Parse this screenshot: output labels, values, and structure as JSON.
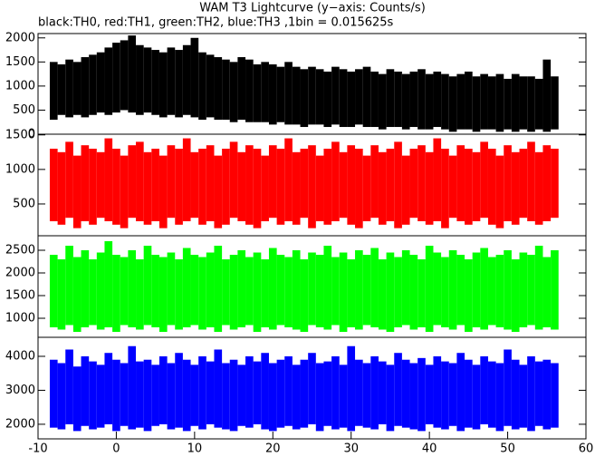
{
  "chart_data": [
    {
      "type": "range",
      "title": "WAM T3 Lightcurve (y−axis: Counts/s)",
      "subtitle": "black:TH0, red:TH1, green:TH2, blue:TH3 ,1bin = 0.015625s",
      "color": "#000000",
      "xlim": [
        -10,
        60
      ],
      "ylim": [
        0,
        2090
      ],
      "yticks": [
        0,
        500,
        1000,
        1500,
        2000
      ],
      "x": [
        -8,
        -7,
        -6,
        -5,
        -4,
        -3,
        -2,
        -1,
        0,
        1,
        2,
        3,
        4,
        5,
        6,
        7,
        8,
        9,
        10,
        11,
        12,
        13,
        14,
        15,
        16,
        17,
        18,
        19,
        20,
        21,
        22,
        23,
        24,
        25,
        26,
        27,
        28,
        29,
        30,
        31,
        32,
        33,
        34,
        35,
        36,
        37,
        38,
        39,
        40,
        41,
        42,
        43,
        44,
        45,
        46,
        47,
        48,
        49,
        50,
        51,
        52,
        53,
        54,
        55,
        56
      ],
      "high": [
        1500,
        1450,
        1550,
        1500,
        1600,
        1650,
        1700,
        1800,
        1900,
        1950,
        2050,
        1850,
        1800,
        1750,
        1700,
        1800,
        1750,
        1850,
        2000,
        1700,
        1650,
        1600,
        1550,
        1500,
        1600,
        1550,
        1450,
        1500,
        1450,
        1400,
        1500,
        1400,
        1350,
        1400,
        1350,
        1300,
        1400,
        1350,
        1300,
        1350,
        1400,
        1300,
        1250,
        1350,
        1300,
        1250,
        1300,
        1350,
        1250,
        1300,
        1250,
        1200,
        1250,
        1300,
        1200,
        1250,
        1200,
        1250,
        1150,
        1250,
        1200,
        1200,
        1150,
        1550,
        1200
      ],
      "low": [
        300,
        400,
        350,
        400,
        350,
        400,
        450,
        400,
        450,
        500,
        450,
        400,
        450,
        400,
        350,
        400,
        350,
        400,
        350,
        300,
        350,
        300,
        300,
        250,
        300,
        250,
        250,
        250,
        200,
        250,
        200,
        200,
        150,
        200,
        200,
        150,
        200,
        150,
        150,
        200,
        150,
        150,
        100,
        150,
        150,
        100,
        150,
        100,
        100,
        150,
        100,
        50,
        100,
        100,
        50,
        100,
        100,
        50,
        100,
        50,
        100,
        50,
        100,
        50,
        100
      ]
    },
    {
      "type": "range",
      "color": "#ff0000",
      "xlim": [
        -10,
        60
      ],
      "ylim": [
        40,
        1510
      ],
      "yticks": [
        500,
        1000,
        1500
      ],
      "x": [
        -8,
        -7,
        -6,
        -5,
        -4,
        -3,
        -2,
        -1,
        0,
        1,
        2,
        3,
        4,
        5,
        6,
        7,
        8,
        9,
        10,
        11,
        12,
        13,
        14,
        15,
        16,
        17,
        18,
        19,
        20,
        21,
        22,
        23,
        24,
        25,
        26,
        27,
        28,
        29,
        30,
        31,
        32,
        33,
        34,
        35,
        36,
        37,
        38,
        39,
        40,
        41,
        42,
        43,
        44,
        45,
        46,
        47,
        48,
        49,
        50,
        51,
        52,
        53,
        54,
        55,
        56
      ],
      "high": [
        1300,
        1250,
        1400,
        1200,
        1350,
        1300,
        1250,
        1450,
        1300,
        1200,
        1350,
        1400,
        1250,
        1300,
        1200,
        1350,
        1300,
        1450,
        1250,
        1300,
        1350,
        1200,
        1300,
        1400,
        1250,
        1350,
        1300,
        1200,
        1350,
        1300,
        1450,
        1250,
        1300,
        1350,
        1200,
        1300,
        1400,
        1250,
        1350,
        1300,
        1200,
        1350,
        1250,
        1300,
        1400,
        1200,
        1300,
        1350,
        1250,
        1450,
        1300,
        1200,
        1350,
        1300,
        1250,
        1400,
        1300,
        1200,
        1350,
        1250,
        1300,
        1400,
        1250,
        1350,
        1300
      ],
      "low": [
        250,
        200,
        300,
        150,
        250,
        200,
        300,
        250,
        200,
        150,
        300,
        250,
        200,
        250,
        150,
        300,
        200,
        250,
        300,
        200,
        250,
        150,
        200,
        300,
        250,
        200,
        150,
        250,
        300,
        200,
        250,
        200,
        300,
        150,
        250,
        200,
        250,
        300,
        200,
        150,
        250,
        300,
        200,
        250,
        150,
        200,
        300,
        250,
        200,
        250,
        150,
        300,
        250,
        200,
        250,
        300,
        200,
        150,
        250,
        200,
        300,
        250,
        200,
        250,
        300
      ]
    },
    {
      "type": "range",
      "color": "#00ff00",
      "xlim": [
        -10,
        60
      ],
      "ylim": [
        580,
        2820
      ],
      "yticks": [
        1000,
        1500,
        2000,
        2500
      ],
      "x": [
        -8,
        -7,
        -6,
        -5,
        -4,
        -3,
        -2,
        -1,
        0,
        1,
        2,
        3,
        4,
        5,
        6,
        7,
        8,
        9,
        10,
        11,
        12,
        13,
        14,
        15,
        16,
        17,
        18,
        19,
        20,
        21,
        22,
        23,
        24,
        25,
        26,
        27,
        28,
        29,
        30,
        31,
        32,
        33,
        34,
        35,
        36,
        37,
        38,
        39,
        40,
        41,
        42,
        43,
        44,
        45,
        46,
        47,
        48,
        49,
        50,
        51,
        52,
        53,
        54,
        55,
        56
      ],
      "high": [
        2400,
        2300,
        2600,
        2350,
        2500,
        2300,
        2450,
        2700,
        2400,
        2350,
        2500,
        2300,
        2600,
        2400,
        2350,
        2450,
        2300,
        2550,
        2400,
        2350,
        2450,
        2600,
        2300,
        2400,
        2500,
        2350,
        2450,
        2300,
        2550,
        2400,
        2350,
        2500,
        2300,
        2450,
        2400,
        2600,
        2350,
        2450,
        2300,
        2500,
        2400,
        2550,
        2300,
        2450,
        2350,
        2500,
        2400,
        2300,
        2600,
        2450,
        2350,
        2500,
        2400,
        2300,
        2450,
        2550,
        2350,
        2400,
        2500,
        2300,
        2450,
        2400,
        2600,
        2350,
        2500
      ],
      "low": [
        800,
        750,
        850,
        700,
        800,
        850,
        750,
        800,
        700,
        850,
        800,
        750,
        850,
        800,
        700,
        850,
        750,
        800,
        850,
        750,
        800,
        700,
        850,
        750,
        800,
        850,
        700,
        800,
        750,
        850,
        800,
        750,
        700,
        850,
        800,
        750,
        850,
        700,
        800,
        750,
        850,
        800,
        750,
        700,
        800,
        850,
        750,
        800,
        700,
        850,
        800,
        750,
        850,
        700,
        800,
        750,
        850,
        800,
        750,
        700,
        800,
        850,
        750,
        800,
        750
      ]
    },
    {
      "type": "range",
      "color": "#0000ff",
      "xlim": [
        -10,
        60
      ],
      "ylim": [
        1570,
        4560
      ],
      "yticks": [
        2000,
        3000,
        4000
      ],
      "xticks": [
        -10,
        0,
        10,
        20,
        30,
        40,
        50,
        60
      ],
      "x": [
        -8,
        -7,
        -6,
        -5,
        -4,
        -3,
        -2,
        -1,
        0,
        1,
        2,
        3,
        4,
        5,
        6,
        7,
        8,
        9,
        10,
        11,
        12,
        13,
        14,
        15,
        16,
        17,
        18,
        19,
        20,
        21,
        22,
        23,
        24,
        25,
        26,
        27,
        28,
        29,
        30,
        31,
        32,
        33,
        34,
        35,
        36,
        37,
        38,
        39,
        40,
        41,
        42,
        43,
        44,
        45,
        46,
        47,
        48,
        49,
        50,
        51,
        52,
        53,
        54,
        55,
        56
      ],
      "high": [
        3900,
        3800,
        4200,
        3700,
        4000,
        3850,
        3750,
        4100,
        3900,
        3800,
        4300,
        3850,
        3900,
        3750,
        4000,
        3800,
        4100,
        3900,
        3750,
        4000,
        3850,
        4200,
        3800,
        3900,
        3750,
        4000,
        3850,
        4100,
        3800,
        3900,
        4000,
        3750,
        3900,
        4100,
        3800,
        3850,
        4000,
        3750,
        4300,
        3900,
        3800,
        4000,
        3850,
        3750,
        4100,
        3900,
        3800,
        3950,
        3750,
        4000,
        3850,
        3800,
        4100,
        3900,
        3750,
        4000,
        3850,
        3800,
        4200,
        3900,
        3750,
        4000,
        3850,
        3900,
        3800
      ],
      "low": [
        1900,
        1850,
        2000,
        1800,
        1950,
        1850,
        1900,
        2000,
        1800,
        1950,
        1850,
        1900,
        1800,
        1950,
        2000,
        1850,
        1900,
        1800,
        1950,
        1850,
        2000,
        1900,
        1850,
        1800,
        1950,
        1900,
        2000,
        1850,
        1800,
        1900,
        1950,
        1850,
        1900,
        2000,
        1800,
        1950,
        1850,
        1900,
        1800,
        1950,
        1900,
        1850,
        2000,
        1800,
        1950,
        1900,
        1850,
        1800,
        2000,
        1900,
        1850,
        1950,
        1800,
        1900,
        1850,
        2000,
        1900,
        1800,
        1950,
        1850,
        1900,
        1800,
        1950,
        1850,
        1900
      ]
    }
  ]
}
